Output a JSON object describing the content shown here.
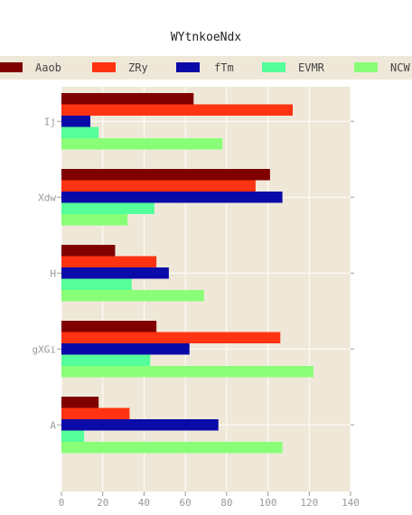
{
  "chart_data": {
    "type": "bar",
    "orientation": "horizontal",
    "title": "WYtnkoeNdx",
    "categories": [
      "Ij",
      "Xdw",
      "H",
      "gXGi",
      "A"
    ],
    "series": [
      {
        "name": "Aaob",
        "color": "#800000",
        "values": [
          64,
          101,
          26,
          46,
          18
        ]
      },
      {
        "name": "ZRy",
        "color": "#ff3311",
        "values": [
          112,
          94,
          46,
          106,
          33
        ]
      },
      {
        "name": "fTm",
        "color": "#0a0aa8",
        "values": [
          14,
          107,
          52,
          62,
          76
        ]
      },
      {
        "name": "EVMR",
        "color": "#55ff99",
        "values": [
          18,
          45,
          34,
          43,
          11
        ]
      },
      {
        "name": "NCW",
        "color": "#88ff77",
        "values": [
          78,
          32,
          69,
          122,
          107
        ]
      }
    ],
    "xticks": [
      0,
      20,
      40,
      60,
      80,
      100,
      120,
      140
    ],
    "xlim": [
      0,
      140
    ],
    "xlabel": "",
    "ylabel": "",
    "grid": true,
    "legend_position": "top",
    "plot_background": "#efe8d8"
  }
}
